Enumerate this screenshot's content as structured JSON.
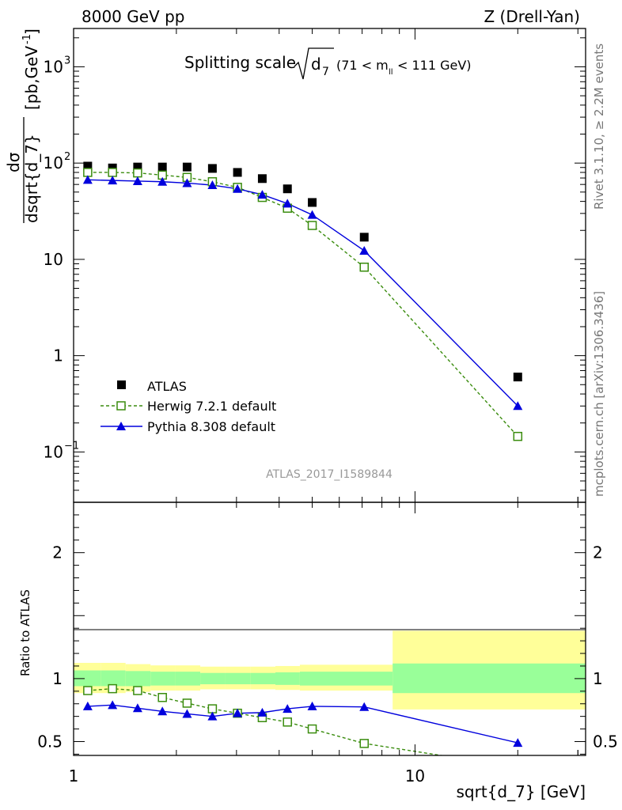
{
  "header": {
    "left": "8000 GeV pp",
    "right": "Z (Drell-Yan)"
  },
  "sidebar": {
    "rivet": "Rivet 3.1.10, ≥ 2.2M events",
    "mcplots": "mcplots.cern.ch [arXiv:1306.3436]"
  },
  "colors": {
    "atlas": "#000000",
    "herwig": "#3a8c0e",
    "pythia": "#0000dd",
    "band_inner": "#99ff99",
    "band_outer": "#ffff99"
  },
  "chart_data": {
    "type": "line",
    "title": "Splitting scale",
    "title_symbol": "d",
    "title_subscript": "7",
    "title_range": "(71 < m",
    "title_range_sub": "ll",
    "title_range_end": "< 111 GeV)",
    "watermark": "ATLAS_2017_I1589844",
    "xlabel": "sqrt{d_7} [GeV]",
    "ylabel_num": "dσ",
    "ylabel_den": "dsqrt{d_7}",
    "ylabel_unit": "[pb,GeV",
    "ylabel_unit_sup": "-1",
    "ylabel_unit_end": "]",
    "ratio_ylabel": "Ratio to ATLAS",
    "x_scale": "log",
    "xlim": [
      1,
      31.6
    ],
    "ylim_main": [
      0.03,
      2500
    ],
    "ylim_ratio": [
      0.39,
      2.4
    ],
    "x_ticks": [
      "1",
      "10"
    ],
    "y_ticks_main": [
      {
        "base": "10",
        "exp": "3",
        "value": 1000
      },
      {
        "base": "10",
        "exp": "2",
        "value": 100
      },
      {
        "base": "10",
        "exp": "",
        "value": 10
      },
      {
        "base": "1",
        "exp": "",
        "value": 1
      },
      {
        "base": "10",
        "exp": "−1",
        "value": 0.1
      }
    ],
    "y_ticks_ratio": [
      "0.5",
      "1",
      "2"
    ],
    "legend_position": "bottom-left",
    "x": [
      1.1,
      1.3,
      1.54,
      1.82,
      2.15,
      2.55,
      3.02,
      3.57,
      4.23,
      5.0,
      7.1,
      20.0
    ],
    "series": [
      {
        "name": "ATLAS",
        "style": "square-filled",
        "values": [
          93,
          89,
          91,
          91,
          91,
          88,
          80,
          69,
          54,
          39,
          17,
          0.6
        ],
        "ratio": [
          1,
          1,
          1,
          1,
          1,
          1,
          1,
          1,
          1,
          1,
          1,
          1
        ]
      },
      {
        "name": "Herwig 7.2.1 default",
        "style": "square-open-dashed",
        "values": [
          80,
          80,
          79,
          75,
          71,
          64,
          56,
          44,
          34,
          22.5,
          8.3,
          0.145
        ],
        "ratio": [
          0.905,
          0.92,
          0.905,
          0.85,
          0.805,
          0.76,
          0.725,
          0.69,
          0.655,
          0.6,
          0.485,
          0.295
        ]
      },
      {
        "name": "Pythia 8.308 default",
        "style": "triangle-filled-solid",
        "values": [
          67,
          66,
          65,
          64,
          62,
          59,
          54,
          47,
          38,
          29,
          12.3,
          0.3
        ],
        "ratio": [
          0.78,
          0.79,
          0.765,
          0.74,
          0.72,
          0.7,
          0.725,
          0.73,
          0.76,
          0.78,
          0.775,
          0.49
        ]
      }
    ],
    "bands": {
      "edges": [
        1,
        1.2,
        1.42,
        1.68,
        1.99,
        2.35,
        2.78,
        3.3,
        3.9,
        4.6,
        8.6,
        31.6
      ],
      "inner_low": [
        0.94,
        0.94,
        0.94,
        0.945,
        0.945,
        0.955,
        0.955,
        0.955,
        0.95,
        0.945,
        0.885
      ],
      "inner_high": [
        1.065,
        1.065,
        1.06,
        1.055,
        1.055,
        1.045,
        1.045,
        1.045,
        1.05,
        1.055,
        1.12
      ],
      "outer_low": [
        0.885,
        0.885,
        0.895,
        0.905,
        0.905,
        0.915,
        0.915,
        0.915,
        0.91,
        0.905,
        0.755
      ],
      "outer_high": [
        1.125,
        1.125,
        1.115,
        1.105,
        1.105,
        1.095,
        1.095,
        1.095,
        1.1,
        1.11,
        1.38
      ]
    }
  }
}
